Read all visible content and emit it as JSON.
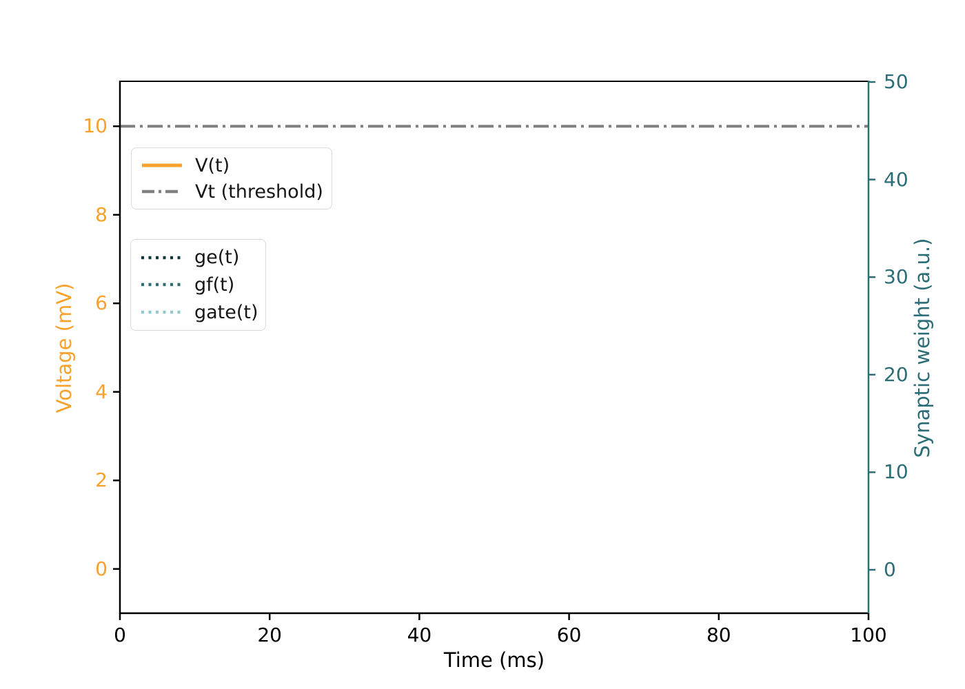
{
  "chart_data": {
    "type": "line",
    "xlabel": "Time (ms)",
    "ylabel_left": "Voltage (mV)",
    "ylabel_right": "Synaptic weight (a.u.)",
    "xlim": [
      0,
      100
    ],
    "ylim_left": [
      -1,
      11
    ],
    "ylim_right": [
      -4.45,
      50
    ],
    "xticks": [
      0,
      20,
      40,
      60,
      80,
      100
    ],
    "yticks_left": [
      0,
      2,
      4,
      6,
      8,
      10
    ],
    "yticks_right": [
      0,
      10,
      20,
      30,
      40,
      50
    ],
    "grid": false,
    "colors": {
      "voltage_axis_text": "#F9A12B",
      "weight_axis_text": "#2B6E78",
      "weight_axis_spine": "#2B6E78",
      "left_spine": "#000000",
      "bottom_spine": "#000000",
      "top_spine": "#000000",
      "x_tick_text": "#000000",
      "threshold_line": "#808080"
    },
    "series": [
      {
        "name": "V(t)",
        "axis": "left",
        "color": "#F9A12B",
        "style": "solid",
        "x": [],
        "y": []
      },
      {
        "name": "Vt (threshold)",
        "axis": "left",
        "color": "#808080",
        "style": "dashdot",
        "x": [
          0,
          100
        ],
        "y": [
          10,
          10
        ]
      },
      {
        "name": "ge(t)",
        "axis": "right",
        "color": "#11393D",
        "style": "dotted",
        "x": [],
        "y": []
      },
      {
        "name": "gf(t)",
        "axis": "right",
        "color": "#2C6E72",
        "style": "dotted",
        "x": [],
        "y": []
      },
      {
        "name": "gate(t)",
        "axis": "right",
        "color": "#8FCBCC",
        "style": "dotted",
        "x": [],
        "y": []
      }
    ],
    "legends": [
      {
        "name": "voltage-legend",
        "entries": [
          {
            "label": "V(t)",
            "color": "#F9A12B",
            "style": "solid"
          },
          {
            "label": "Vt (threshold)",
            "color": "#808080",
            "style": "dashdot"
          }
        ]
      },
      {
        "name": "conductance-legend",
        "entries": [
          {
            "label": "ge(t)",
            "color": "#11393D",
            "style": "dotted"
          },
          {
            "label": "gf(t)",
            "color": "#2C6E72",
            "style": "dotted"
          },
          {
            "label": "gate(t)",
            "color": "#8FCBCC",
            "style": "dotted"
          }
        ]
      }
    ],
    "legend_position": "upper left"
  }
}
